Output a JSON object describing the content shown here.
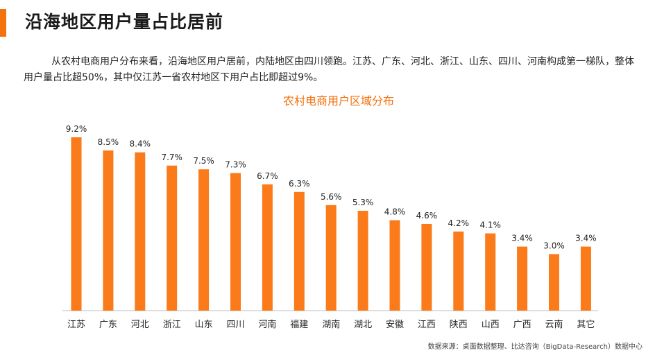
{
  "page": {
    "title": "沿海地区用户量占比居前",
    "intro": "从农村电商用户分布来看，沿海地区用户居前，内陆地区由四川领跑。江苏、广东、河北、浙江、山东、四川、河南构成第一梯队，整体用户量占比超50%，其中仅江苏一省农村地区下用户占比即超过9%。",
    "source": "数据来源：桌面数据整理、比达咨询（BigData-Research）数据中心"
  },
  "colors": {
    "accent": "#f5730f",
    "bar": "#fb7a19",
    "chart_title": "#f36f0c",
    "axis": "#bfbfbf"
  },
  "chart_data": {
    "type": "bar",
    "title": "农村电商用户区域分布",
    "xlabel": "",
    "ylabel": "",
    "categories": [
      "江苏",
      "广东",
      "河北",
      "浙江",
      "山东",
      "四川",
      "河南",
      "福建",
      "湖南",
      "湖北",
      "安徽",
      "江西",
      "陕西",
      "山西",
      "广西",
      "云南",
      "其它"
    ],
    "values": [
      9.2,
      8.5,
      8.4,
      7.7,
      7.5,
      7.3,
      6.7,
      6.3,
      5.6,
      5.3,
      4.8,
      4.6,
      4.2,
      4.1,
      3.4,
      3.0,
      3.4
    ],
    "value_suffix": "%",
    "ylim": [
      0,
      9.2
    ],
    "grid": false,
    "legend": "none"
  }
}
